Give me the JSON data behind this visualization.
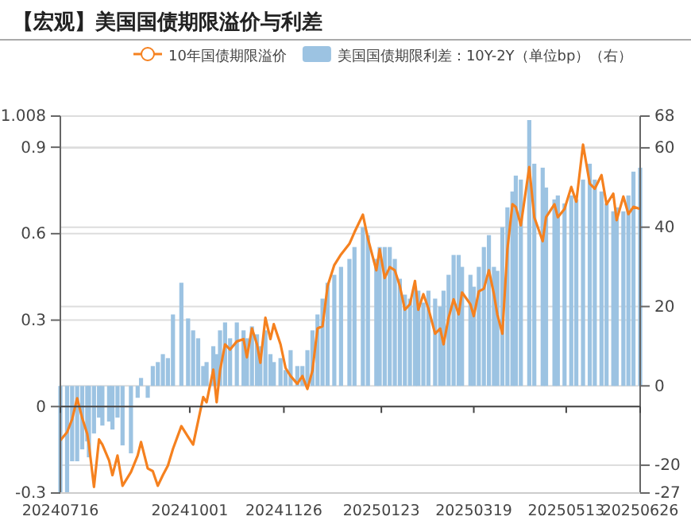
{
  "chart_data": {
    "type": "line",
    "title": "【宏观】美国国债期限溢价与利差",
    "x": [
      "2024-07-16",
      "2024-07-20",
      "2024-07-23",
      "2024-07-26",
      "2024-07-29",
      "2024-08-01",
      "2024-08-02",
      "2024-08-05",
      "2024-08-08",
      "2024-08-10",
      "2024-08-14",
      "2024-08-16",
      "2024-08-19",
      "2024-08-22",
      "2024-08-27",
      "2024-08-31",
      "2024-09-02",
      "2024-09-06",
      "2024-09-09",
      "2024-09-12",
      "2024-09-15",
      "2024-09-18",
      "2024-09-21",
      "2024-09-26",
      "2024-09-30",
      "2024-10-03",
      "2024-10-06",
      "2024-10-09",
      "2024-10-11",
      "2024-10-15",
      "2024-10-17",
      "2024-10-19",
      "2024-10-22",
      "2024-10-25",
      "2024-10-29",
      "2024-11-02",
      "2024-11-04",
      "2024-11-07",
      "2024-11-10",
      "2024-11-12",
      "2024-11-15",
      "2024-11-18",
      "2024-11-20",
      "2024-11-24",
      "2024-11-27",
      "2024-11-30",
      "2024-12-04",
      "2024-12-07",
      "2024-12-10",
      "2024-12-13",
      "2024-12-16",
      "2024-12-19",
      "2024-12-22",
      "2024-12-26",
      "2024-12-30",
      "2025-01-04",
      "2025-01-07",
      "2025-01-12",
      "2025-01-15",
      "2025-01-20",
      "2025-01-22",
      "2025-01-25",
      "2025-01-28",
      "2025-01-31",
      "2025-02-03",
      "2025-02-06",
      "2025-02-09",
      "2025-02-12",
      "2025-02-14",
      "2025-02-17",
      "2025-02-20",
      "2025-02-24",
      "2025-02-27",
      "2025-03-01",
      "2025-03-04",
      "2025-03-07",
      "2025-03-10",
      "2025-03-12",
      "2025-03-17",
      "2025-03-19",
      "2025-03-22",
      "2025-03-25",
      "2025-03-28",
      "2025-03-31",
      "2025-04-02",
      "2025-04-05",
      "2025-04-08",
      "2025-04-11",
      "2025-04-13",
      "2025-04-16",
      "2025-04-21",
      "2025-04-24",
      "2025-04-29",
      "2025-05-01",
      "2025-05-06",
      "2025-05-08",
      "2025-05-12",
      "2025-05-16",
      "2025-05-19",
      "2025-05-23",
      "2025-05-27",
      "2025-05-30",
      "2025-06-03",
      "2025-06-06",
      "2025-06-10",
      "2025-06-12",
      "2025-06-16",
      "2025-06-19",
      "2025-06-22",
      "2025-06-26"
    ],
    "series": [
      {
        "name": "美国国债期限利差：10Y-2Y（单位bp）（右）",
        "type": "bar",
        "axis": "y2",
        "color": "#9cc3e2",
        "values": [
          -27,
          -27,
          -19,
          -19,
          -16,
          -14,
          -18,
          -12,
          -8,
          -10,
          -9,
          -11,
          -8,
          -15,
          -17,
          -3,
          2,
          -3,
          5,
          6,
          8,
          7,
          18,
          26,
          17,
          14,
          12,
          5,
          6,
          10,
          8,
          14,
          16,
          12,
          16,
          14,
          12,
          15,
          13,
          10,
          14,
          8,
          6,
          7,
          4,
          9,
          5,
          5,
          9,
          14,
          18,
          22,
          26,
          28,
          30,
          32,
          35,
          40,
          38,
          32,
          35,
          35,
          35,
          32,
          27,
          23,
          22,
          25,
          24,
          21,
          24,
          22,
          20,
          24,
          28,
          33,
          33,
          30,
          28,
          25,
          30,
          35,
          38,
          30,
          29,
          40,
          45,
          49,
          53,
          52,
          67,
          56,
          55,
          50,
          47,
          48,
          46,
          48,
          47,
          52,
          56,
          52,
          49,
          46,
          44,
          45,
          44,
          48,
          54,
          55
        ]
      },
      {
        "name": "10年国债期限溢价",
        "color": "#f5811f",
        "values": [
          -0.117,
          -0.089,
          -0.044,
          0.029,
          -0.04,
          -0.095,
          -0.132,
          -0.279,
          -0.114,
          -0.132,
          -0.187,
          -0.238,
          -0.17,
          -0.275,
          -0.227,
          -0.17,
          -0.123,
          -0.215,
          -0.224,
          -0.275,
          -0.238,
          -0.205,
          -0.147,
          -0.068,
          -0.105,
          -0.132,
          -0.05,
          0.033,
          0.015,
          0.128,
          0.015,
          0.125,
          0.216,
          0.198,
          0.226,
          0.234,
          0.171,
          0.271,
          0.216,
          0.152,
          0.308,
          0.234,
          0.286,
          0.216,
          0.134,
          0.106,
          0.079,
          0.106,
          0.061,
          0.125,
          0.271,
          0.279,
          0.418,
          0.491,
          0.528,
          0.565,
          0.605,
          0.666,
          0.583,
          0.473,
          0.546,
          0.446,
          0.484,
          0.473,
          0.418,
          0.336,
          0.355,
          0.436,
          0.336,
          0.39,
          0.34,
          0.253,
          0.271,
          0.216,
          0.308,
          0.372,
          0.32,
          0.396,
          0.355,
          0.314,
          0.4,
          0.409,
          0.473,
          0.39,
          0.32,
          0.253,
          0.546,
          0.702,
          0.693,
          0.629,
          0.831,
          0.657,
          0.574,
          0.657,
          0.702,
          0.657,
          0.686,
          0.762,
          0.711,
          0.909,
          0.774,
          0.756,
          0.803,
          0.702,
          0.739,
          0.647,
          0.729,
          0.668,
          0.693,
          0.686
        ]
      }
    ],
    "xlim": [
      "2024-07-16",
      "2025-06-26"
    ],
    "xticks": [
      {
        "value": "2024-07-16",
        "label": "20240716"
      },
      {
        "value": "2024-10-01",
        "label": "20241001"
      },
      {
        "value": "2024-11-26",
        "label": "20241126"
      },
      {
        "value": "2025-01-23",
        "label": "20250123"
      },
      {
        "value": "2025-03-19",
        "label": "20250319"
      },
      {
        "value": "2025-05-13",
        "label": "20250513"
      },
      {
        "value": "2025-06-26",
        "label": "20250626"
      }
    ],
    "ylim": [
      -0.3,
      1.008
    ],
    "yticks": [
      -0.3,
      0,
      0.3,
      0.6,
      0.9,
      1.008
    ],
    "y2lim": [
      -27,
      68
    ],
    "y2ticks": [
      -27,
      -20,
      0,
      20,
      40,
      60,
      68
    ],
    "ref_lines": [
      {
        "axis": "y",
        "value": 0,
        "color": "#444444"
      }
    ],
    "grid": "y",
    "legend": "top",
    "line_style": "solid"
  }
}
